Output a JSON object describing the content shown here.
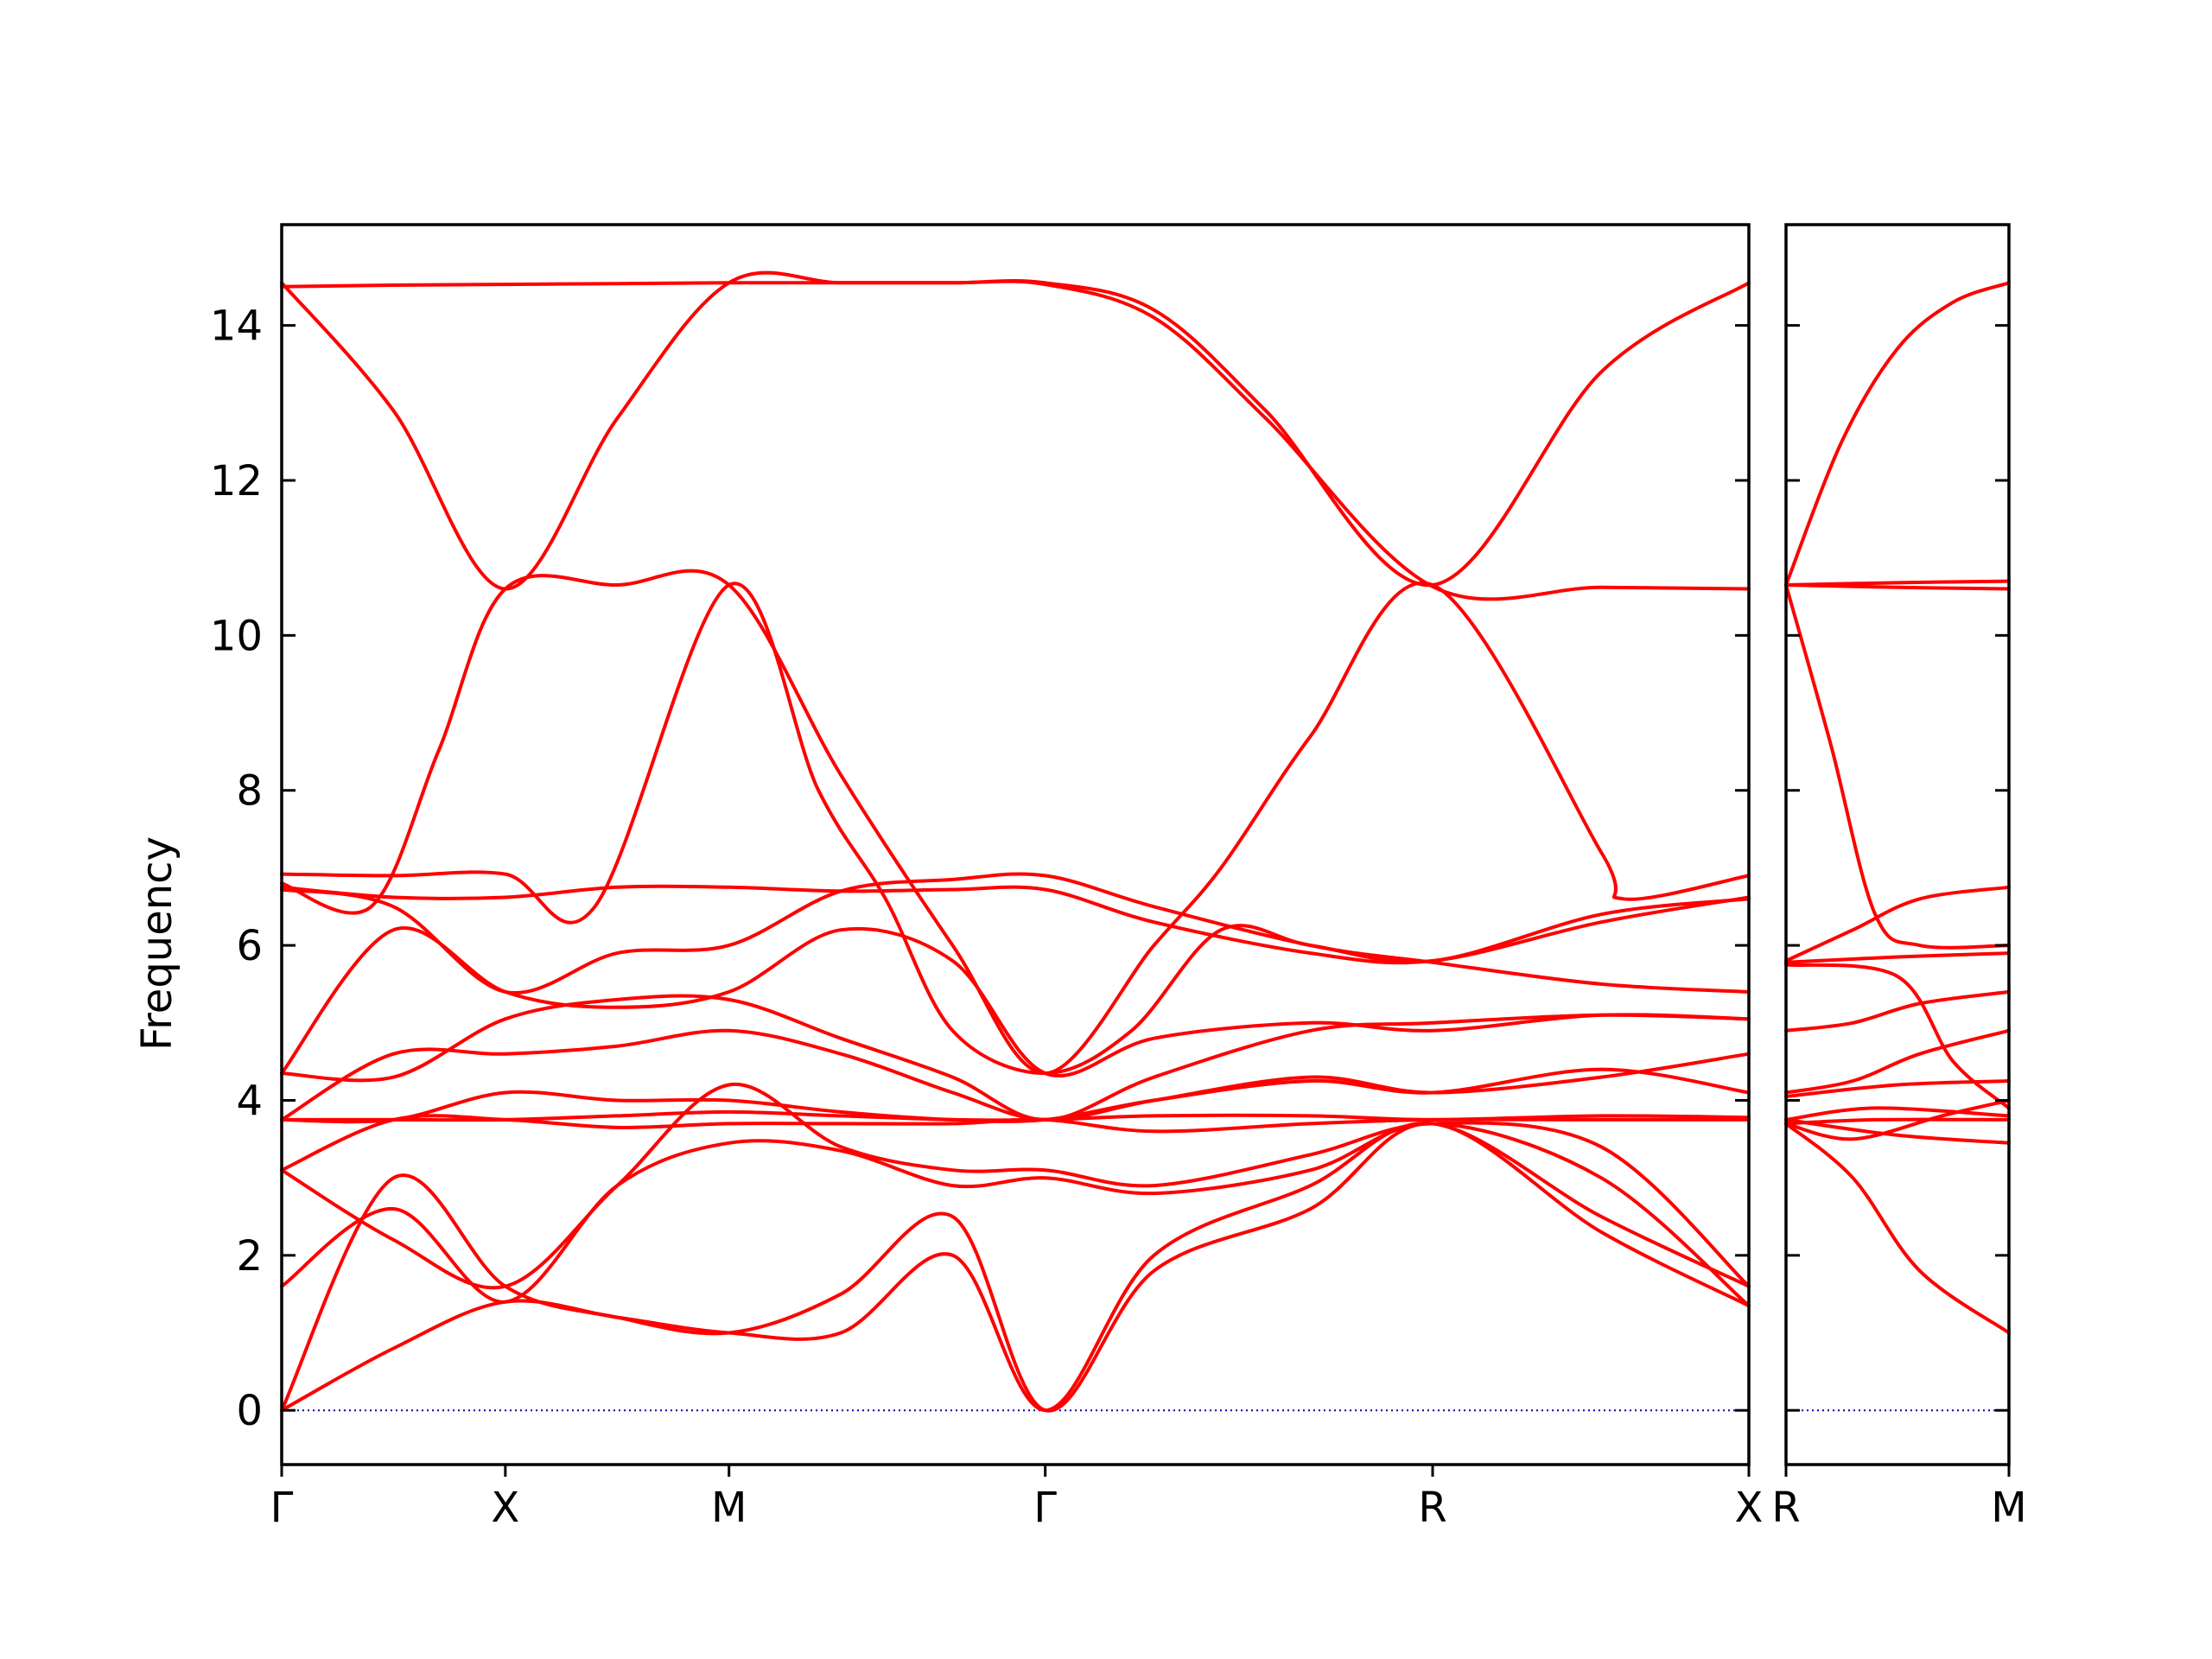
{
  "chart_data": {
    "type": "line",
    "ylabel": "Frequency",
    "ylim": [
      -0.7,
      15.3
    ],
    "yticks": [
      0,
      2,
      4,
      6,
      8,
      10,
      12,
      14
    ],
    "series_color": "#ff0000",
    "zero_line_color": "#0000aa",
    "panels": [
      {
        "x_ticks": [
          {
            "label": "Γ",
            "x": 0
          },
          {
            "label": "X",
            "x": 1
          },
          {
            "label": "M",
            "x": 2
          },
          {
            "label": "Γ",
            "x": 3.414
          },
          {
            "label": "R",
            "x": 5.146
          },
          {
            "label": "X",
            "x": 6.56
          }
        ],
        "bands": [
          {
            "x": [
              0,
              0.5,
              1,
              1.5,
              2,
              2.5,
              3,
              3.414,
              3.9,
              4.4,
              5.146,
              5.9,
              6.56
            ],
            "y": [
              14.55,
              12.9,
              10.6,
              12.8,
              14.55,
              14.55,
              14.55,
              14.55,
              14.2,
              12.9,
              10.65,
              13.4,
              14.55
            ]
          },
          {
            "x": [
              0,
              0.5,
              1,
              1.5,
              2,
              2.5,
              3,
              3.414,
              3.9,
              4.4,
              5.146,
              5.9,
              6.56
            ],
            "y": [
              14.5,
              14.52,
              14.53,
              14.54,
              14.55,
              14.55,
              14.55,
              14.53,
              14.1,
              12.8,
              10.63,
              10.62,
              10.6
            ]
          },
          {
            "x": [
              0,
              0.4,
              0.7,
              1,
              1.5,
              2,
              2.5,
              3,
              3.414,
              3.9,
              4.2,
              4.6,
              5.146,
              5.9,
              6.0,
              6.56
            ],
            "y": [
              6.8,
              6.5,
              8.5,
              10.6,
              10.65,
              10.65,
              8.2,
              6.0,
              4.35,
              6.0,
              7.0,
              8.7,
              10.65,
              7.2,
              6.6,
              6.9
            ]
          },
          {
            "x": [
              0,
              0.5,
              1,
              1.4,
              2,
              2.4,
              2.7,
              3,
              3.414,
              3.8,
              4.2,
              4.6,
              5.146,
              5.9,
              6.56
            ],
            "y": [
              6.92,
              6.9,
              6.92,
              6.5,
              10.65,
              8.0,
              6.6,
              4.9,
              4.35,
              4.9,
              6.2,
              6.0,
              5.8,
              6.4,
              6.6
            ]
          },
          {
            "x": [
              0,
              0.5,
              1,
              1.5,
              2,
              2.5,
              3,
              3.414,
              3.9,
              4.6,
              5.146,
              5.9,
              6.56
            ],
            "y": [
              6.75,
              6.62,
              6.62,
              6.75,
              6.75,
              6.7,
              6.72,
              6.72,
              6.3,
              5.9,
              5.8,
              6.3,
              6.62
            ]
          },
          {
            "x": [
              0,
              0.5,
              1,
              1.5,
              2,
              2.5,
              3,
              3.414,
              3.9,
              4.6,
              5.146,
              5.9,
              6.56
            ],
            "y": [
              6.72,
              6.5,
              5.4,
              5.9,
              6.0,
              6.7,
              6.85,
              6.9,
              6.5,
              6.0,
              5.78,
              5.5,
              5.4
            ]
          },
          {
            "x": [
              0,
              0.5,
              1,
              1.5,
              2,
              2.5,
              3,
              3.414,
              3.9,
              4.6,
              5.146,
              5.9,
              6.56
            ],
            "y": [
              4.35,
              6.2,
              5.4,
              5.2,
              5.4,
              6.2,
              5.8,
              4.35,
              4.8,
              5.0,
              4.9,
              5.1,
              5.05
            ]
          },
          {
            "x": [
              0,
              0.5,
              1,
              1.5,
              2,
              2.5,
              3,
              3.414,
              3.9,
              4.6,
              5.146,
              5.9,
              6.56
            ],
            "y": [
              4.35,
              4.3,
              5.05,
              5.3,
              5.3,
              4.8,
              4.3,
              3.75,
              4.3,
              4.9,
              5.0,
              5.1,
              5.05
            ]
          },
          {
            "x": [
              0,
              0.5,
              1,
              1.5,
              2,
              2.5,
              3,
              3.414,
              3.9,
              4.6,
              5.146,
              5.9,
              6.56
            ],
            "y": [
              3.75,
              4.6,
              4.6,
              4.7,
              4.9,
              4.6,
              4.1,
              3.75,
              4.0,
              4.3,
              4.1,
              4.3,
              4.6
            ]
          },
          {
            "x": [
              0,
              0.5,
              1,
              1.5,
              2,
              2.5,
              3,
              3.414,
              3.9,
              4.6,
              5.146,
              5.9,
              6.56
            ],
            "y": [
              3.75,
              3.75,
              4.1,
              4.0,
              4.0,
              3.85,
              3.75,
              3.75,
              4.0,
              4.25,
              4.1,
              4.4,
              4.1
            ]
          },
          {
            "x": [
              0,
              0.5,
              1,
              1.5,
              2,
              2.5,
              3,
              3.414,
              3.9,
              4.6,
              5.146,
              5.9,
              6.56
            ],
            "y": [
              3.75,
              3.75,
              3.75,
              3.8,
              3.85,
              3.8,
              3.75,
              3.75,
              3.8,
              3.8,
              3.75,
              3.8,
              3.78
            ]
          },
          {
            "x": [
              0,
              0.5,
              1,
              1.5,
              2,
              2.5,
              3,
              3.414,
              3.9,
              4.6,
              5.146,
              5.9,
              6.56
            ],
            "y": [
              3.1,
              3.75,
              3.75,
              3.65,
              3.7,
              3.7,
              3.7,
              3.75,
              3.6,
              3.7,
              3.75,
              3.75,
              3.75
            ]
          },
          {
            "x": [
              0,
              0.5,
              1,
              1.5,
              2,
              2.5,
              3,
              3.414,
              3.9,
              4.6,
              5.146,
              5.9,
              6.56
            ],
            "y": [
              3.1,
              2.2,
              1.6,
              2.9,
              4.2,
              3.4,
              3.1,
              3.1,
              2.9,
              3.3,
              3.7,
              3.4,
              1.6
            ]
          },
          {
            "x": [
              0,
              0.5,
              1,
              1.5,
              2,
              2.5,
              3,
              3.414,
              3.9,
              4.6,
              5.146,
              5.9,
              6.56
            ],
            "y": [
              1.6,
              2.6,
              1.4,
              2.9,
              3.45,
              3.35,
              2.9,
              3.0,
              2.8,
              3.1,
              3.7,
              3.0,
              1.35
            ]
          },
          {
            "x": [
              0,
              0.5,
              1,
              1.5,
              2,
              2.5,
              3,
              3.414,
              3.9,
              4.6,
              5.146,
              5.9,
              6.56
            ],
            "y": [
              0,
              0.8,
              1.4,
              1.2,
              1.0,
              1.0,
              2.0,
              0,
              2.0,
              2.9,
              3.7,
              2.5,
              1.6
            ]
          },
          {
            "x": [
              0,
              0.5,
              1,
              1.5,
              2,
              2.5,
              3,
              3.414,
              3.9,
              4.6,
              5.146,
              5.9,
              6.56
            ],
            "y": [
              0,
              3.0,
              1.6,
              1.2,
              1.0,
              1.5,
              2.5,
              0,
              1.8,
              2.6,
              3.7,
              2.3,
              1.35
            ]
          }
        ]
      },
      {
        "x_ticks": [
          {
            "label": "R",
            "x": 0
          },
          {
            "label": "M",
            "x": 1
          }
        ],
        "bands": [
          {
            "x": [
              0,
              0.25,
              0.5,
              0.75,
              1
            ],
            "y": [
              10.65,
              12.5,
              13.7,
              14.3,
              14.55
            ]
          },
          {
            "x": [
              0,
              0.5,
              1
            ],
            "y": [
              10.65,
              10.68,
              10.7
            ]
          },
          {
            "x": [
              0,
              0.5,
              1
            ],
            "y": [
              10.65,
              10.62,
              10.6
            ]
          },
          {
            "x": [
              0,
              0.2,
              0.4,
              0.6,
              1
            ],
            "y": [
              10.65,
              8.6,
              6.4,
              6.0,
              6.0
            ]
          },
          {
            "x": [
              0,
              0.3,
              0.6,
              1
            ],
            "y": [
              5.8,
              6.2,
              6.6,
              6.75
            ]
          },
          {
            "x": [
              0,
              0.5,
              1
            ],
            "y": [
              5.78,
              5.85,
              5.9
            ]
          },
          {
            "x": [
              0,
              0.5,
              0.75,
              1
            ],
            "y": [
              5.75,
              5.6,
              4.5,
              3.9
            ]
          },
          {
            "x": [
              0,
              0.3,
              0.6,
              1
            ],
            "y": [
              4.9,
              5.0,
              5.25,
              5.4
            ]
          },
          {
            "x": [
              0,
              0.3,
              0.6,
              1
            ],
            "y": [
              4.1,
              4.25,
              4.6,
              4.9
            ]
          },
          {
            "x": [
              0,
              0.5,
              1
            ],
            "y": [
              4.05,
              4.2,
              4.25
            ]
          },
          {
            "x": [
              0,
              0.4,
              1
            ],
            "y": [
              3.75,
              3.9,
              3.8
            ]
          },
          {
            "x": [
              0,
              0.4,
              1
            ],
            "y": [
              3.7,
              3.75,
              3.75
            ]
          },
          {
            "x": [
              0,
              0.5,
              1
            ],
            "y": [
              3.75,
              3.55,
              3.45
            ]
          },
          {
            "x": [
              0,
              0.3,
              0.7,
              1
            ],
            "y": [
              3.7,
              3.5,
              3.8,
              4.0
            ]
          },
          {
            "x": [
              0,
              0.3,
              0.6,
              1
            ],
            "y": [
              3.7,
              3.0,
              1.8,
              1.0
            ]
          }
        ]
      }
    ]
  }
}
